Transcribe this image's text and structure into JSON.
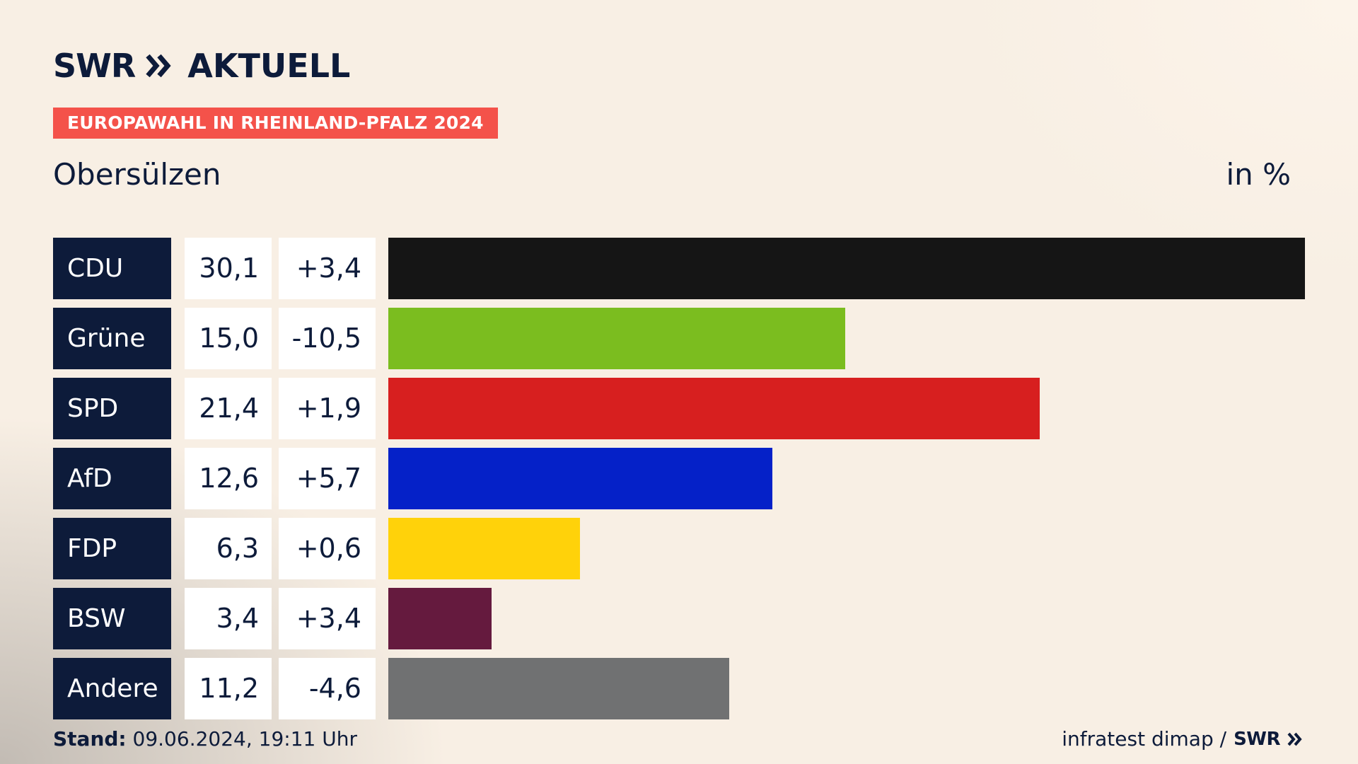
{
  "brand": {
    "logo_text": "SWR",
    "title": "AKTUELL"
  },
  "election_tag": "EUROPAWAHL IN RHEINLAND-PFALZ 2024",
  "place": "Obersülzen",
  "unit": "in %",
  "chart_data": {
    "type": "bar",
    "orientation": "horizontal",
    "title": "Obersülzen",
    "unit": "in %",
    "categories": [
      "CDU",
      "Grüne",
      "SPD",
      "AfD",
      "FDP",
      "BSW",
      "Andere"
    ],
    "values": [
      30.1,
      15.0,
      21.4,
      12.6,
      6.3,
      3.4,
      11.2
    ],
    "value_labels": [
      "30,1",
      "15,0",
      "21,4",
      "12,6",
      "6,3",
      "3,4",
      "11,2"
    ],
    "changes": [
      3.4,
      -10.5,
      1.9,
      5.7,
      0.6,
      3.4,
      -4.6
    ],
    "change_labels": [
      "+3,4",
      "-10,5",
      "+1,9",
      "+5,7",
      "+0,6",
      "+3,4",
      "-4,6"
    ],
    "colors": [
      "#151515",
      "#7bbd1f",
      "#d71f1f",
      "#0521c8",
      "#ffd20a",
      "#651a3e",
      "#707172"
    ],
    "xlim": [
      0,
      30.1
    ]
  },
  "footer": {
    "stand_label": "Stand:",
    "stand_value": "09.06.2024, 19:11 Uhr",
    "source": "infratest dimap /",
    "source_logo": "SWR"
  }
}
